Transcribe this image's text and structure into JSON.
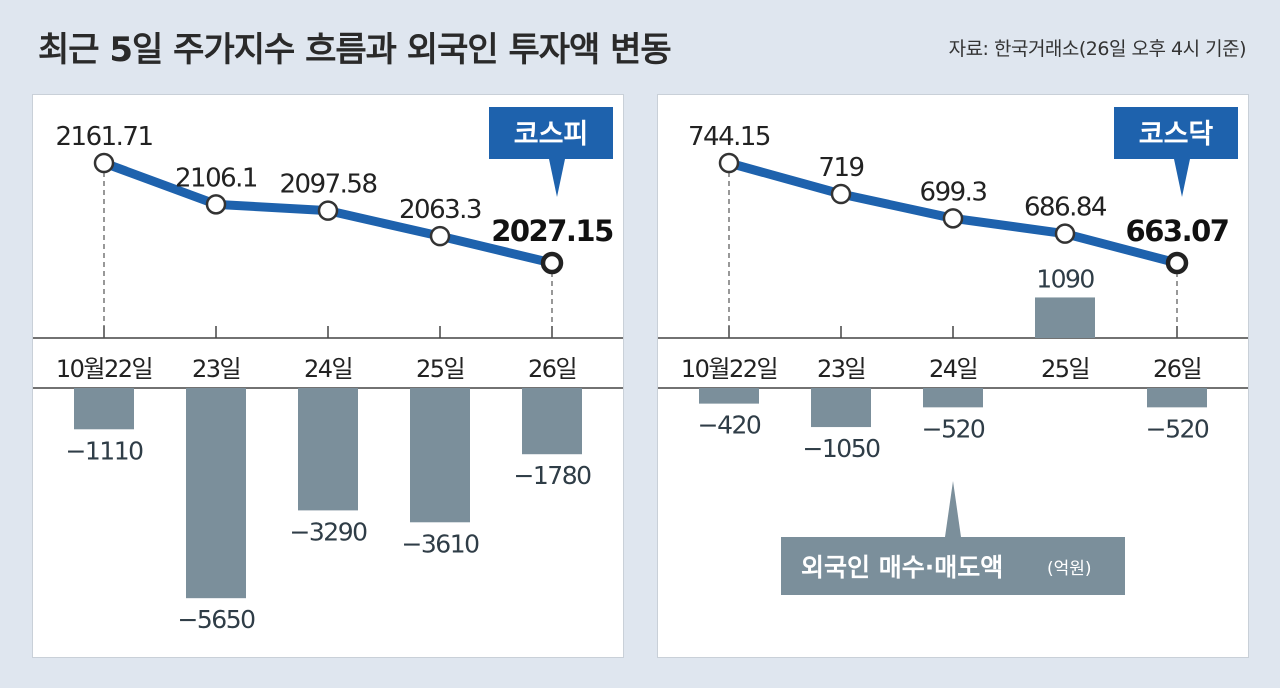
{
  "title": "최근 5일 주가지수 흐름과 외국인 투자액 변동",
  "source": "자료: 한국거래소(26일 오후 4시 기준)",
  "legend": {
    "label": "외국인 매수·매도액",
    "unit": "(억원)"
  },
  "colors": {
    "line": "#1e62ad",
    "bar": "#7b8f9b",
    "badge": "#1e62ad"
  },
  "chart_data": [
    {
      "type": "line+bar",
      "title": "코스피",
      "categories": [
        "10월22일",
        "23일",
        "24일",
        "25일",
        "26일"
      ],
      "index_values": [
        2161.71,
        2106.1,
        2097.58,
        2063.3,
        2027.15
      ],
      "index_labels": [
        "2161.71",
        "2106.1",
        "2097.58",
        "2063.3",
        "2027.15"
      ],
      "foreign_net": [
        -1110,
        -5650,
        -3290,
        -3610,
        -1780
      ],
      "foreign_labels": [
        "−1110",
        "−5650",
        "−3290",
        "−3610",
        "−1780"
      ]
    },
    {
      "type": "line+bar",
      "title": "코스닥",
      "categories": [
        "10월22일",
        "23일",
        "24일",
        "25일",
        "26일"
      ],
      "index_values": [
        744.15,
        719,
        699.3,
        686.84,
        663.07
      ],
      "index_labels": [
        "744.15",
        "719",
        "699.3",
        "686.84",
        "663.07"
      ],
      "foreign_net": [
        -420,
        -1050,
        -520,
        1090,
        -520
      ],
      "foreign_labels": [
        "−420",
        "−1050",
        "−520",
        "1090",
        "−520"
      ]
    }
  ]
}
